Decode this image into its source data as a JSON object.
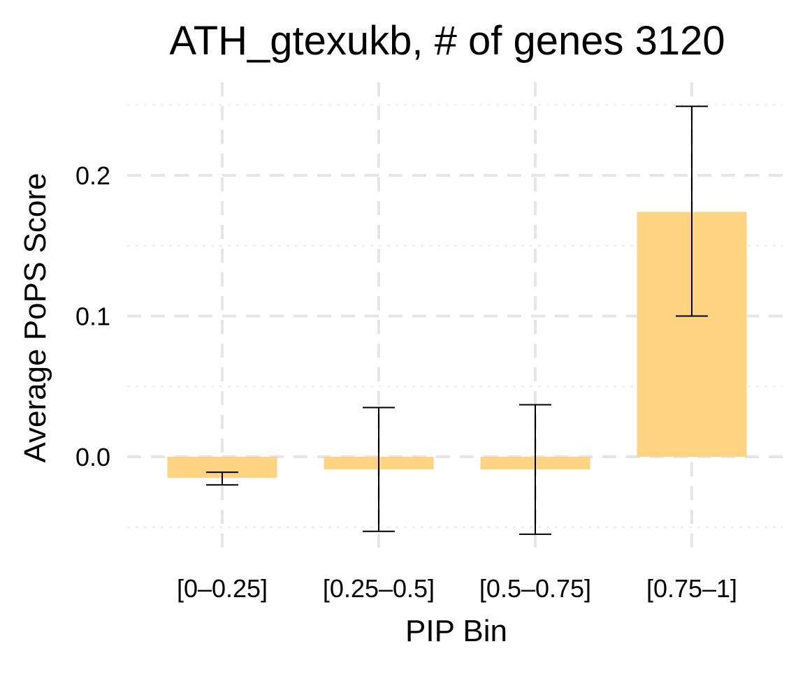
{
  "chart_data": {
    "type": "bar",
    "title": "ATH_gtexukb, # of genes 3120",
    "xlabel": "PIP Bin",
    "ylabel": "Average PoPS Score",
    "categories": [
      "[0–0.25]",
      "[0.25–0.5]",
      "[0.5–0.75]",
      "[0.75–1]"
    ],
    "values": [
      -0.015,
      -0.009,
      -0.009,
      0.174
    ],
    "error_low": [
      -0.02,
      -0.053,
      -0.055,
      0.1
    ],
    "error_high": [
      -0.011,
      0.035,
      0.037,
      0.249
    ],
    "ylim": [
      -0.06,
      0.255
    ],
    "yticks": [
      0.0,
      0.1,
      0.2
    ],
    "ytick_labels": [
      "0.0",
      "0.1",
      "0.2"
    ],
    "minor_yticks": [
      -0.05,
      0.05,
      0.15,
      0.25
    ],
    "grid": true,
    "legend": "none",
    "colors": {
      "bar": "#FED482",
      "error_bar": "#000000",
      "major_grid": "#E5E5E5",
      "minor_grid": "#EBEBEB"
    }
  }
}
